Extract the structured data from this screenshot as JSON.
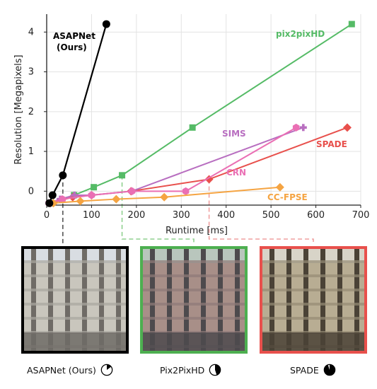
{
  "chart_data": {
    "type": "line",
    "xlabel": "Runtime [ms]",
    "ylabel": "Resolution [Megapixels]",
    "xlim": [
      0,
      700
    ],
    "ylim": [
      -0.35,
      4.45
    ],
    "x_ticks": [
      0,
      100,
      200,
      300,
      400,
      500,
      600,
      700
    ],
    "y_ticks": [
      0,
      1,
      2,
      3,
      4
    ],
    "x_tick_labels": [
      "0",
      "100",
      "200",
      "300",
      "400",
      "500",
      "600",
      "700"
    ],
    "y_tick_labels": [
      "0",
      "1",
      "2",
      "3",
      "4"
    ],
    "grid": true,
    "series": [
      {
        "name": "ASAPNet (Ours)",
        "color": "#000000",
        "marker": "circle",
        "points": [
          [
            6,
            -0.3
          ],
          [
            13,
            -0.1
          ],
          [
            36,
            0.4
          ],
          [
            133,
            4.2
          ]
        ]
      },
      {
        "name": "pix2pixHD",
        "color": "#55bb66",
        "marker": "square",
        "points": [
          [
            10,
            -0.3
          ],
          [
            61,
            -0.1
          ],
          [
            105,
            0.1
          ],
          [
            168,
            0.4
          ],
          [
            325,
            1.6
          ],
          [
            680,
            4.2
          ]
        ]
      },
      {
        "name": "SIMS",
        "color": "#b86ec0",
        "marker": "plus",
        "points": [
          [
            5,
            -0.3
          ],
          [
            30,
            -0.2
          ],
          [
            62,
            -0.1
          ],
          [
            100,
            -0.1
          ],
          [
            190,
            0.0
          ],
          [
            572,
            1.6
          ]
        ]
      },
      {
        "name": "SPADE",
        "color": "#e8504c",
        "marker": "diamond",
        "points": [
          [
            8,
            -0.3
          ],
          [
            58,
            -0.15
          ],
          [
            100,
            -0.1
          ],
          [
            188,
            0.0
          ],
          [
            362,
            0.3
          ],
          [
            670,
            1.6
          ]
        ]
      },
      {
        "name": "CRN",
        "color": "#ea6fb4",
        "marker": "hexagon",
        "points": [
          [
            5,
            -0.3
          ],
          [
            35,
            -0.2
          ],
          [
            100,
            -0.1
          ],
          [
            190,
            0.0
          ],
          [
            310,
            0.0
          ],
          [
            556,
            1.6
          ]
        ]
      },
      {
        "name": "CC-FPSE",
        "color": "#f5a442",
        "marker": "diamond",
        "points": [
          [
            15,
            -0.3
          ],
          [
            75,
            -0.25
          ],
          [
            155,
            -0.2
          ],
          [
            262,
            -0.15
          ],
          [
            520,
            0.1
          ]
        ]
      }
    ],
    "dashed_links": [
      {
        "color": "#555555",
        "x": 36,
        "to_panel": "asapnet"
      },
      {
        "color": "#8fd08f",
        "x": 168,
        "to_panel": "pix2pixhd"
      },
      {
        "color": "#f0a0a0",
        "x": 362,
        "to_panel": "spade"
      }
    ]
  },
  "panels": [
    {
      "id": "asapnet",
      "caption": "ASAPNet (Ours)",
      "border_color": "#000000",
      "clock_fraction": 0.15
    },
    {
      "id": "pix2pixhd",
      "caption": "Pix2PixHD",
      "border_color": "#4daf50",
      "clock_fraction": 0.45
    },
    {
      "id": "spade",
      "caption": "SPADE",
      "border_color": "#e8504c",
      "clock_fraction": 0.95
    }
  ],
  "labels": {
    "asapnet": "ASAPNet (Ours)",
    "pix2pixhd": "pix2pixHD",
    "sims": "SIMS",
    "spade": "SPADE",
    "crn": "CRN",
    "ccfpse": "CC-FPSE"
  }
}
